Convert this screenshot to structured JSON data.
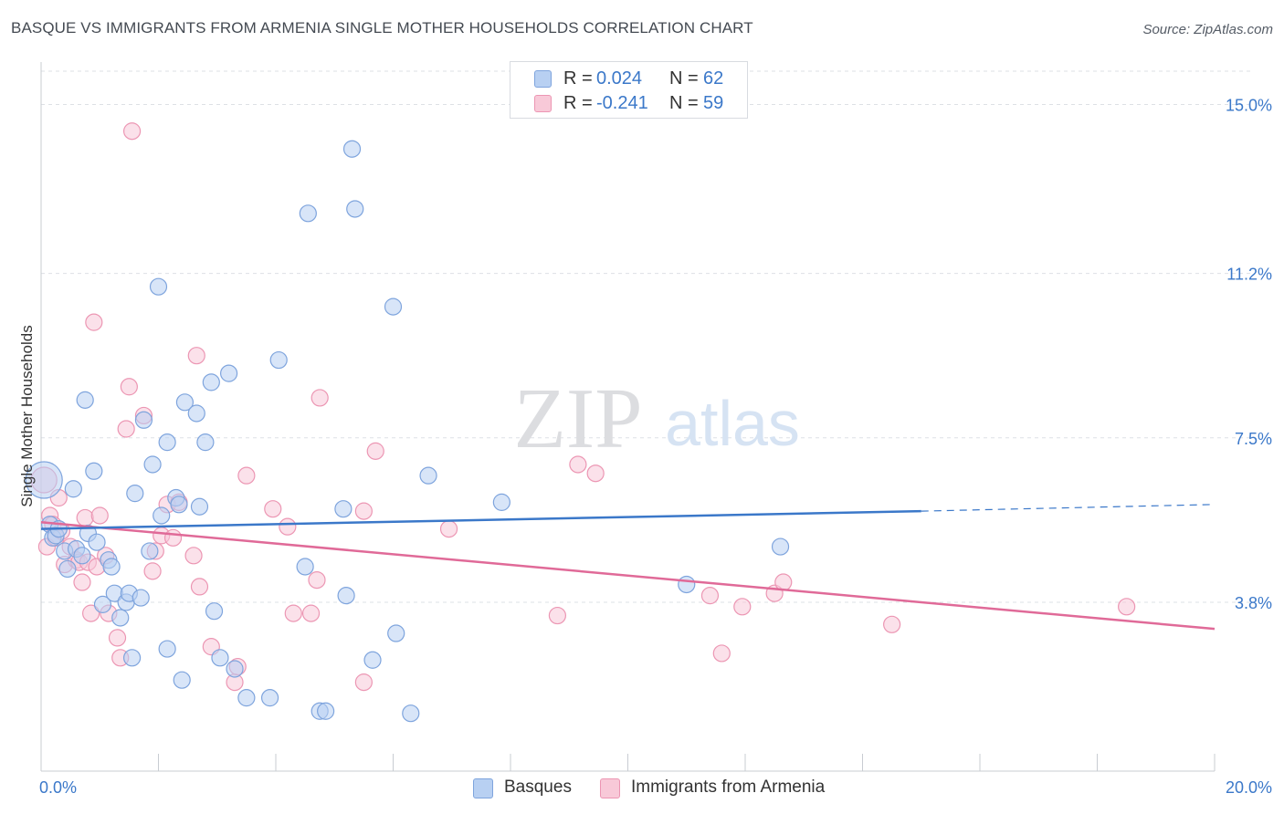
{
  "title": "BASQUE VS IMMIGRANTS FROM ARMENIA SINGLE MOTHER HOUSEHOLDS CORRELATION CHART",
  "source": "Source: ZipAtlas.com",
  "watermark": {
    "zip": "ZIP",
    "atlas": "atlas"
  },
  "colors": {
    "blue_fill": "#b8d0f2",
    "blue_stroke": "#7ea4dd",
    "blue_line": "#3b78c9",
    "pink_fill": "#f8c9d8",
    "pink_stroke": "#ec96b3",
    "pink_line": "#e06a98",
    "value_text": "#3b78c9",
    "grid": "#dde0e5"
  },
  "legend": {
    "rows": [
      {
        "r_key": "R =",
        "r_val": "0.024",
        "n_key": "N =",
        "n_val": "62",
        "color": "blue"
      },
      {
        "r_key": "R =",
        "r_val": "-0.241",
        "n_key": "N =",
        "n_val": "59",
        "color": "pink"
      }
    ]
  },
  "chart_data": {
    "type": "scatter",
    "title": "BASQUE VS IMMIGRANTS FROM ARMENIA SINGLE MOTHER HOUSEHOLDS CORRELATION CHART",
    "xlabel": "",
    "ylabel": "Single Mother Households",
    "xlim": [
      0,
      20
    ],
    "ylim": [
      0,
      15.75
    ],
    "x_tick_labels": [
      {
        "value": 0,
        "label": "0.0%"
      },
      {
        "value": 20,
        "label": "20.0%"
      }
    ],
    "y_ticks": [
      {
        "value": 3.8,
        "label": "3.8%"
      },
      {
        "value": 7.5,
        "label": "7.5%"
      },
      {
        "value": 11.2,
        "label": "11.2%"
      },
      {
        "value": 15.0,
        "label": "15.0%"
      }
    ],
    "legend_placement": "top-center",
    "series": [
      {
        "name": "Basques",
        "color": "blue",
        "trend": {
          "x0": 0,
          "y0": 5.45,
          "x1": 15.0,
          "y1": 5.85,
          "dash_x1": 20.0,
          "dash_y1": 6.0
        },
        "points": [
          [
            0.05,
            6.55,
            3
          ],
          [
            0.15,
            5.55,
            1
          ],
          [
            0.2,
            5.25,
            1
          ],
          [
            0.25,
            5.3,
            1
          ],
          [
            0.3,
            5.45,
            1
          ],
          [
            0.4,
            4.95,
            1
          ],
          [
            0.45,
            4.55,
            1
          ],
          [
            0.55,
            6.35,
            1
          ],
          [
            0.6,
            5.0,
            1
          ],
          [
            0.7,
            4.85,
            1
          ],
          [
            0.75,
            8.35,
            1
          ],
          [
            0.8,
            5.35,
            1
          ],
          [
            0.9,
            6.75,
            1
          ],
          [
            0.95,
            5.15,
            1
          ],
          [
            1.05,
            3.75,
            1
          ],
          [
            1.15,
            4.75,
            1
          ],
          [
            1.2,
            4.6,
            1
          ],
          [
            1.25,
            4.0,
            1
          ],
          [
            1.35,
            3.45,
            1
          ],
          [
            1.45,
            3.8,
            1
          ],
          [
            1.5,
            4.0,
            1
          ],
          [
            1.55,
            2.55,
            1
          ],
          [
            1.6,
            6.25,
            1
          ],
          [
            1.7,
            3.9,
            1
          ],
          [
            1.75,
            7.9,
            1
          ],
          [
            1.85,
            4.95,
            1
          ],
          [
            1.9,
            6.9,
            1
          ],
          [
            2.0,
            10.9,
            1
          ],
          [
            2.05,
            5.75,
            1
          ],
          [
            2.15,
            2.75,
            1
          ],
          [
            2.15,
            7.4,
            1
          ],
          [
            2.3,
            6.15,
            1
          ],
          [
            2.35,
            6.0,
            1
          ],
          [
            2.4,
            2.05,
            1
          ],
          [
            2.45,
            8.3,
            1
          ],
          [
            2.65,
            8.05,
            1
          ],
          [
            2.7,
            5.95,
            1
          ],
          [
            2.8,
            7.4,
            1
          ],
          [
            2.9,
            8.75,
            1
          ],
          [
            2.95,
            3.6,
            1
          ],
          [
            3.05,
            2.55,
            1
          ],
          [
            3.2,
            8.95,
            1
          ],
          [
            3.3,
            2.3,
            1
          ],
          [
            3.5,
            1.65,
            1
          ],
          [
            3.9,
            1.65,
            1
          ],
          [
            4.05,
            9.25,
            1
          ],
          [
            4.5,
            4.6,
            1
          ],
          [
            4.55,
            12.55,
            1
          ],
          [
            4.75,
            1.35,
            1
          ],
          [
            4.85,
            1.35,
            1
          ],
          [
            5.15,
            5.9,
            1
          ],
          [
            5.2,
            3.95,
            1
          ],
          [
            5.3,
            14.0,
            1
          ],
          [
            5.35,
            12.65,
            1
          ],
          [
            5.65,
            2.5,
            1
          ],
          [
            6.0,
            10.45,
            1
          ],
          [
            6.05,
            3.1,
            1
          ],
          [
            6.3,
            1.3,
            1
          ],
          [
            6.6,
            6.65,
            1
          ],
          [
            7.85,
            6.05,
            1
          ],
          [
            11.0,
            4.2,
            1
          ],
          [
            12.6,
            5.05,
            1
          ]
        ]
      },
      {
        "name": "Immigrants from Armenia",
        "color": "pink",
        "trend": {
          "x0": 0,
          "y0": 5.6,
          "x1": 20.0,
          "y1": 3.2
        },
        "points": [
          [
            0.05,
            6.55,
            2
          ],
          [
            0.1,
            5.05,
            1
          ],
          [
            0.15,
            5.75,
            1
          ],
          [
            0.2,
            5.55,
            1
          ],
          [
            0.25,
            5.25,
            1
          ],
          [
            0.3,
            6.15,
            1
          ],
          [
            0.35,
            5.4,
            1
          ],
          [
            0.4,
            4.65,
            1
          ],
          [
            0.5,
            5.05,
            1
          ],
          [
            0.6,
            4.75,
            1
          ],
          [
            0.65,
            4.7,
            1
          ],
          [
            0.7,
            4.25,
            1
          ],
          [
            0.75,
            5.7,
            1
          ],
          [
            0.8,
            4.7,
            1
          ],
          [
            0.85,
            3.55,
            1
          ],
          [
            0.9,
            10.1,
            1
          ],
          [
            0.95,
            4.6,
            1
          ],
          [
            1.0,
            5.75,
            1
          ],
          [
            1.1,
            4.85,
            1
          ],
          [
            1.15,
            3.55,
            1
          ],
          [
            1.3,
            3.0,
            1
          ],
          [
            1.35,
            2.55,
            1
          ],
          [
            1.45,
            7.7,
            1
          ],
          [
            1.5,
            8.65,
            1
          ],
          [
            1.55,
            14.4,
            1
          ],
          [
            1.75,
            8.0,
            1
          ],
          [
            1.9,
            4.5,
            1
          ],
          [
            1.95,
            4.95,
            1
          ],
          [
            2.05,
            5.3,
            1
          ],
          [
            2.15,
            6.0,
            1
          ],
          [
            2.25,
            5.25,
            1
          ],
          [
            2.35,
            6.05,
            1
          ],
          [
            2.6,
            4.85,
            1
          ],
          [
            2.65,
            9.35,
            1
          ],
          [
            2.7,
            4.15,
            1
          ],
          [
            2.9,
            2.8,
            1
          ],
          [
            3.3,
            2.0,
            1
          ],
          [
            3.35,
            2.35,
            1
          ],
          [
            3.5,
            6.65,
            1
          ],
          [
            3.95,
            5.9,
            1
          ],
          [
            4.2,
            5.5,
            1
          ],
          [
            4.3,
            3.55,
            1
          ],
          [
            4.6,
            3.55,
            1
          ],
          [
            4.7,
            4.3,
            1
          ],
          [
            4.75,
            8.4,
            1
          ],
          [
            5.5,
            2.0,
            1
          ],
          [
            5.5,
            5.85,
            1
          ],
          [
            5.7,
            7.2,
            1
          ],
          [
            6.95,
            5.45,
            1
          ],
          [
            8.8,
            3.5,
            1
          ],
          [
            9.15,
            6.9,
            1
          ],
          [
            9.45,
            6.7,
            1
          ],
          [
            11.4,
            3.95,
            1
          ],
          [
            11.6,
            2.65,
            1
          ],
          [
            11.95,
            3.7,
            1
          ],
          [
            12.5,
            4.0,
            1
          ],
          [
            12.65,
            4.25,
            1
          ],
          [
            14.5,
            3.3,
            1
          ],
          [
            18.5,
            3.7,
            1
          ]
        ]
      }
    ]
  }
}
